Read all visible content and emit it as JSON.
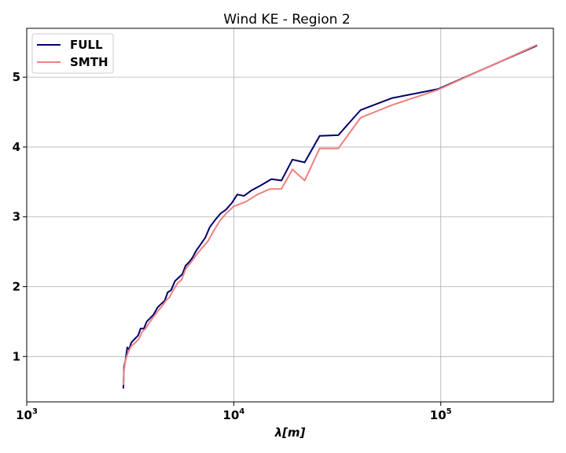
{
  "chart_data": {
    "type": "line",
    "title": "Wind KE - Region 2",
    "xlabel": "λ[m]",
    "ylabel": "",
    "xscale": "log",
    "xlim": [
      1000,
      350000
    ],
    "ylim": [
      0.35,
      5.7
    ],
    "grid": true,
    "legend": "top-left",
    "x_ticks": [
      {
        "value": 1000,
        "base": "10",
        "exp": "3"
      },
      {
        "value": 10000,
        "base": "10",
        "exp": "4"
      },
      {
        "value": 100000,
        "base": "10",
        "exp": "5"
      }
    ],
    "y_ticks": [
      {
        "value": 1,
        "label": "1"
      },
      {
        "value": 2,
        "label": "2"
      },
      {
        "value": 3,
        "label": "3"
      },
      {
        "value": 4,
        "label": "4"
      },
      {
        "value": 5,
        "label": "5"
      }
    ],
    "series": [
      {
        "name": "FULL",
        "color": "#00006b",
        "points": [
          [
            2930,
            0.55
          ],
          [
            2950,
            0.85
          ],
          [
            3000,
            0.95
          ],
          [
            3060,
            1.13
          ],
          [
            3120,
            1.1
          ],
          [
            3200,
            1.2
          ],
          [
            3320,
            1.25
          ],
          [
            3450,
            1.3
          ],
          [
            3550,
            1.4
          ],
          [
            3680,
            1.4
          ],
          [
            3800,
            1.5
          ],
          [
            3950,
            1.55
          ],
          [
            4100,
            1.6
          ],
          [
            4280,
            1.7
          ],
          [
            4450,
            1.75
          ],
          [
            4640,
            1.8
          ],
          [
            4800,
            1.92
          ],
          [
            4980,
            1.95
          ],
          [
            5200,
            2.08
          ],
          [
            5420,
            2.13
          ],
          [
            5650,
            2.18
          ],
          [
            5850,
            2.3
          ],
          [
            6080,
            2.35
          ],
          [
            6330,
            2.42
          ],
          [
            6600,
            2.52
          ],
          [
            6900,
            2.6
          ],
          [
            7280,
            2.7
          ],
          [
            7650,
            2.85
          ],
          [
            8100,
            2.95
          ],
          [
            8650,
            3.05
          ],
          [
            9150,
            3.1
          ],
          [
            9800,
            3.2
          ],
          [
            10400,
            3.32
          ],
          [
            11200,
            3.3
          ],
          [
            12200,
            3.38
          ],
          [
            13500,
            3.45
          ],
          [
            15200,
            3.54
          ],
          [
            17000,
            3.52
          ],
          [
            19200,
            3.82
          ],
          [
            22000,
            3.78
          ],
          [
            26000,
            4.16
          ],
          [
            32000,
            4.17
          ],
          [
            41000,
            4.53
          ],
          [
            58000,
            4.7
          ],
          [
            97000,
            4.83
          ],
          [
            290000,
            5.45
          ]
        ]
      },
      {
        "name": "SMTH",
        "color": "#f08080",
        "points": [
          [
            2930,
            0.6
          ],
          [
            2950,
            0.8
          ],
          [
            3000,
            0.95
          ],
          [
            3080,
            1.05
          ],
          [
            3200,
            1.15
          ],
          [
            3350,
            1.2
          ],
          [
            3480,
            1.25
          ],
          [
            3600,
            1.35
          ],
          [
            3750,
            1.4
          ],
          [
            3900,
            1.48
          ],
          [
            4100,
            1.57
          ],
          [
            4300,
            1.65
          ],
          [
            4500,
            1.72
          ],
          [
            4700,
            1.8
          ],
          [
            4900,
            1.85
          ],
          [
            5100,
            1.95
          ],
          [
            5350,
            2.05
          ],
          [
            5600,
            2.1
          ],
          [
            5850,
            2.25
          ],
          [
            6100,
            2.32
          ],
          [
            6400,
            2.4
          ],
          [
            6700,
            2.48
          ],
          [
            7000,
            2.55
          ],
          [
            7500,
            2.65
          ],
          [
            8000,
            2.8
          ],
          [
            8600,
            2.95
          ],
          [
            9200,
            3.05
          ],
          [
            10000,
            3.15
          ],
          [
            11500,
            3.22
          ],
          [
            13000,
            3.32
          ],
          [
            15000,
            3.4
          ],
          [
            17000,
            3.4
          ],
          [
            19200,
            3.68
          ],
          [
            22000,
            3.52
          ],
          [
            26000,
            3.98
          ],
          [
            32000,
            3.98
          ],
          [
            41000,
            4.42
          ],
          [
            58000,
            4.6
          ],
          [
            97000,
            4.82
          ],
          [
            290000,
            5.46
          ]
        ]
      }
    ]
  }
}
